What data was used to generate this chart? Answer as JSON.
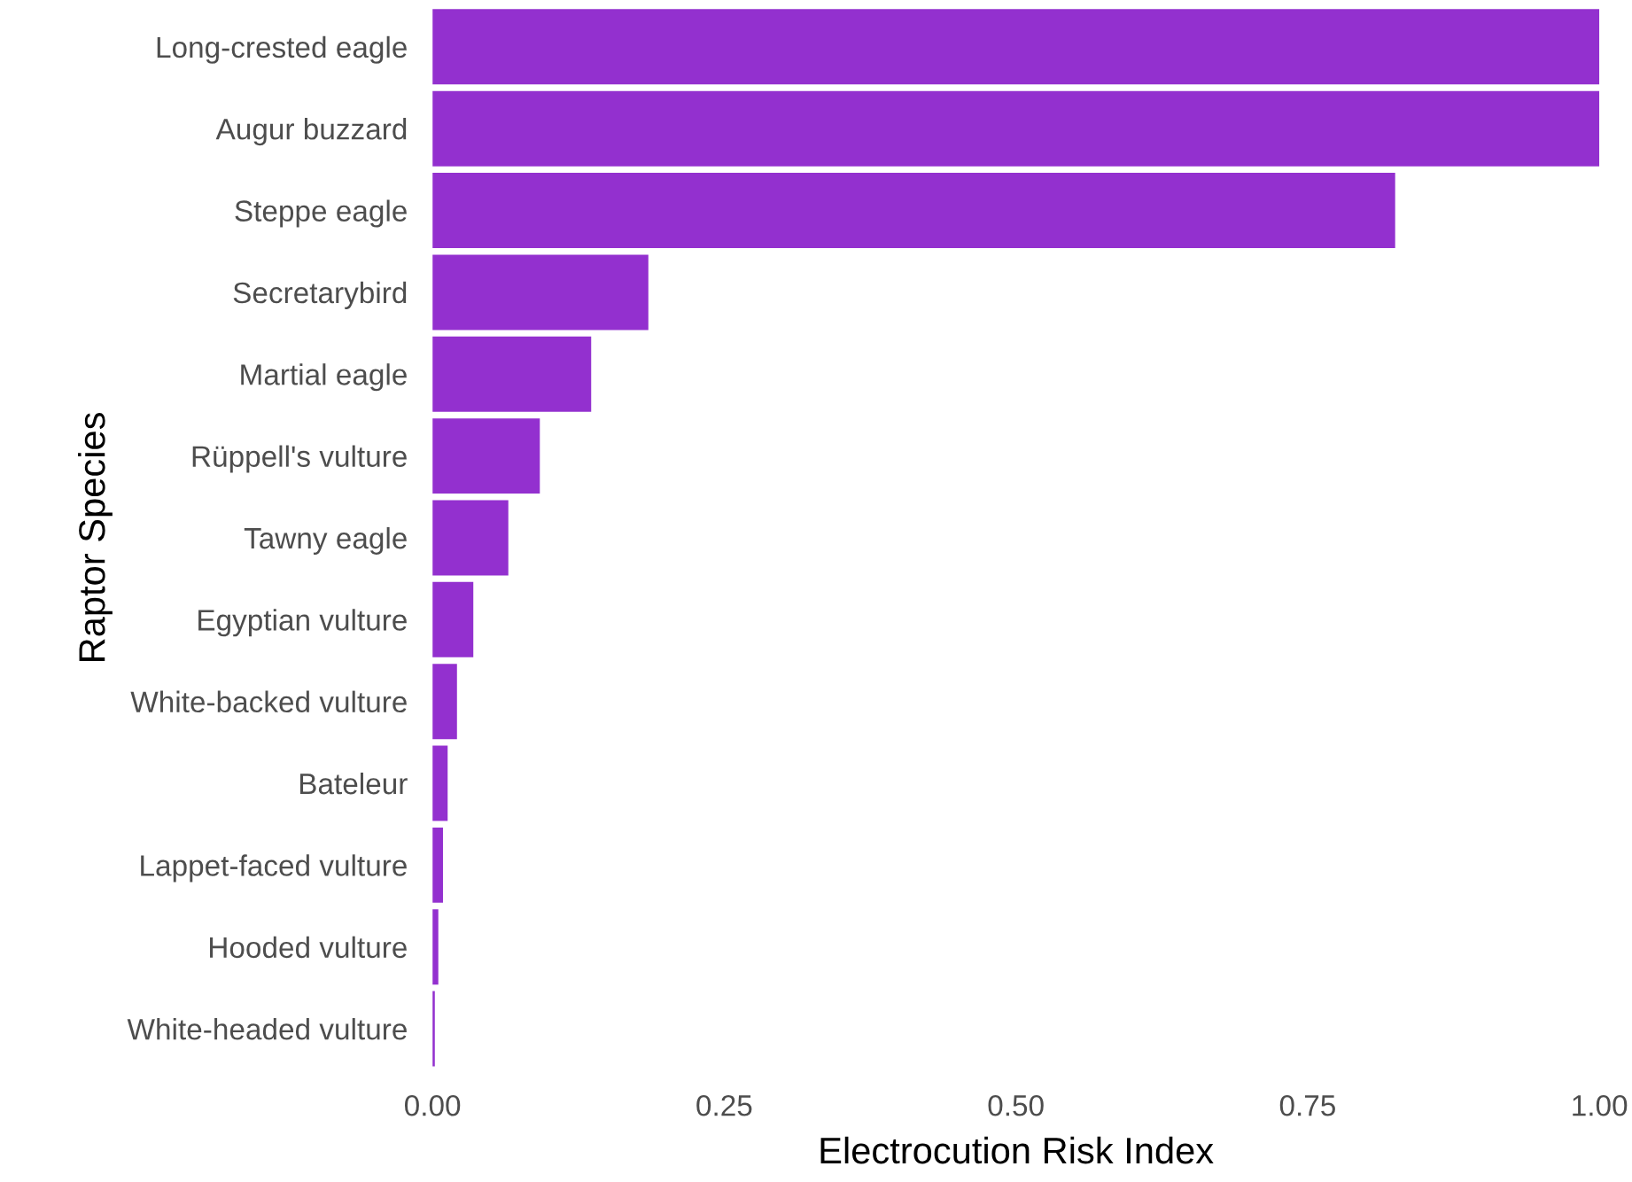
{
  "chart_data": {
    "type": "bar",
    "orientation": "horizontal",
    "xlabel": "Electrocution Risk Index",
    "ylabel": "Raptor Species",
    "categories": [
      "Long-crested eagle",
      "Augur buzzard",
      "Steppe eagle",
      "Secretarybird",
      "Martial eagle",
      "Rüppell's vulture",
      "Tawny eagle",
      "Egyptian vulture",
      "White-backed vulture",
      "Bateleur",
      "Lappet-faced vulture",
      "Hooded vulture",
      "White-headed vulture"
    ],
    "values": [
      1.0,
      1.0,
      0.825,
      0.185,
      0.136,
      0.092,
      0.065,
      0.035,
      0.021,
      0.013,
      0.009,
      0.005,
      0.002
    ],
    "color": "#9330cf",
    "xlim": [
      0,
      1
    ],
    "xticks": [
      {
        "value": 0,
        "label": "0.00"
      },
      {
        "value": 0.25,
        "label": "0.25"
      },
      {
        "value": 0.5,
        "label": "0.50"
      },
      {
        "value": 0.75,
        "label": "0.75"
      },
      {
        "value": 1,
        "label": "1.00"
      }
    ],
    "grid": false
  }
}
